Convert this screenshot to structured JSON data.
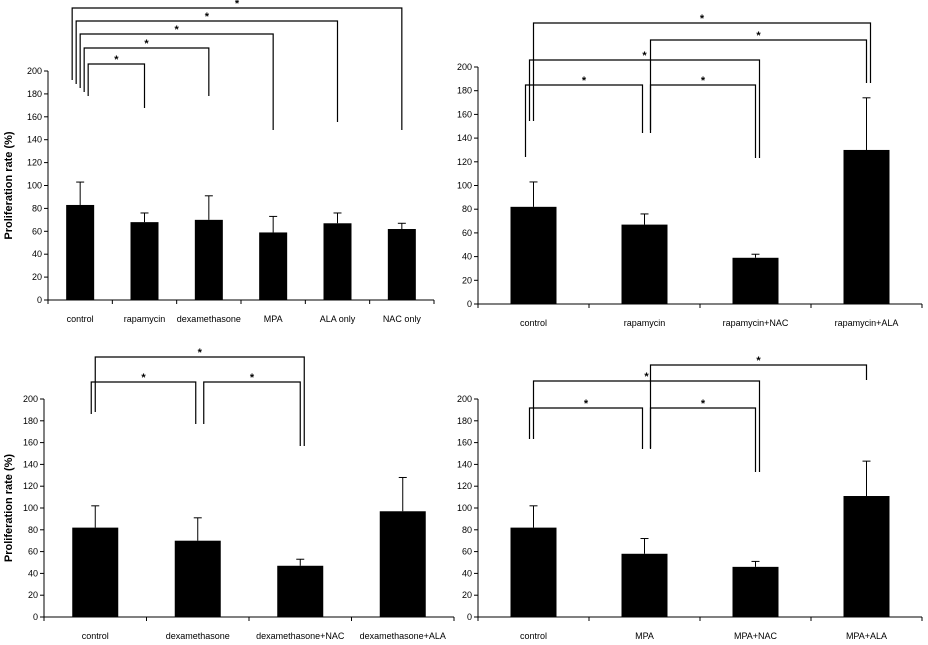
{
  "chart_data": [
    {
      "type": "bar",
      "ylabel": "Proliferation rate (%)",
      "ylim": [
        0,
        200
      ],
      "yticks": [
        0,
        20,
        40,
        60,
        80,
        100,
        120,
        140,
        160,
        180,
        200
      ],
      "categories": [
        "control",
        "rapamycin",
        "dexamethasone",
        "MPA",
        "ALA only",
        "NAC only"
      ],
      "values": [
        83,
        68,
        70,
        59,
        67,
        62
      ],
      "errors": [
        20,
        8,
        21,
        14,
        9,
        5
      ],
      "bar_color": "#000000",
      "significance": [
        {
          "from": 0,
          "to": 1,
          "label": "*"
        },
        {
          "from": 0,
          "to": 2,
          "label": "*"
        },
        {
          "from": 0,
          "to": 3,
          "label": "*"
        },
        {
          "from": 0,
          "to": 4,
          "label": "*"
        },
        {
          "from": 0,
          "to": 5,
          "label": "*"
        }
      ]
    },
    {
      "type": "bar",
      "ylabel": "",
      "ylim": [
        0,
        200
      ],
      "yticks": [
        0,
        20,
        40,
        60,
        80,
        100,
        120,
        140,
        160,
        180,
        200
      ],
      "categories": [
        "control",
        "rapamycin",
        "rapamycin+NAC",
        "rapamycin+ALA"
      ],
      "values": [
        82,
        67,
        39,
        130
      ],
      "errors": [
        21,
        9,
        3,
        44
      ],
      "bar_color": "#000000",
      "significance": [
        {
          "from": 0,
          "to": 1,
          "label": "*"
        },
        {
          "from": 1,
          "to": 2,
          "label": "*"
        },
        {
          "from": 0,
          "to": 2,
          "label": "*"
        },
        {
          "from": 1,
          "to": 3,
          "label": "*"
        },
        {
          "from": 0,
          "to": 3,
          "label": "*"
        }
      ]
    },
    {
      "type": "bar",
      "ylabel": "Proliferation rate (%)",
      "ylim": [
        0,
        200
      ],
      "yticks": [
        0,
        20,
        40,
        60,
        80,
        100,
        120,
        140,
        160,
        180,
        200
      ],
      "categories": [
        "control",
        "dexamethasone",
        "dexamethasone+NAC",
        "dexamethasone+ALA"
      ],
      "values": [
        82,
        70,
        47,
        97
      ],
      "errors": [
        20,
        21,
        6,
        31
      ],
      "bar_color": "#000000",
      "significance": [
        {
          "from": 0,
          "to": 1,
          "label": "*"
        },
        {
          "from": 1,
          "to": 2,
          "label": "*"
        },
        {
          "from": 0,
          "to": 2,
          "label": "*"
        }
      ]
    },
    {
      "type": "bar",
      "ylabel": "",
      "ylim": [
        0,
        200
      ],
      "yticks": [
        0,
        20,
        40,
        60,
        80,
        100,
        120,
        140,
        160,
        180,
        200
      ],
      "categories": [
        "control",
        "MPA",
        "MPA+NAC",
        "MPA+ALA"
      ],
      "values": [
        82,
        58,
        46,
        111
      ],
      "errors": [
        20,
        14,
        5,
        32
      ],
      "bar_color": "#000000",
      "significance": [
        {
          "from": 0,
          "to": 1,
          "label": "*"
        },
        {
          "from": 1,
          "to": 2,
          "label": "*"
        },
        {
          "from": 0,
          "to": 2,
          "label": "*"
        },
        {
          "from": 1,
          "to": 3,
          "label": "*"
        }
      ]
    }
  ]
}
